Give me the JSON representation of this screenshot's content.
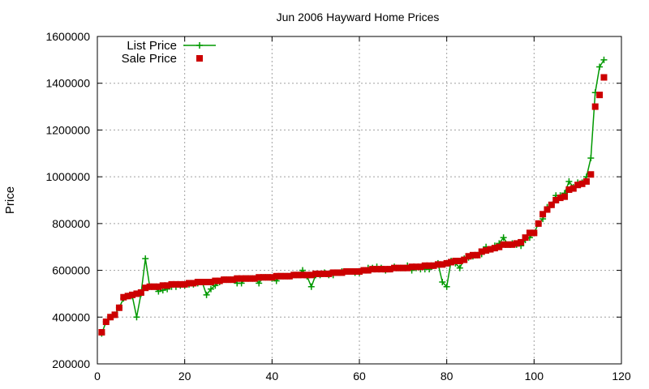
{
  "chart_data": {
    "type": "scatter",
    "title": "Jun 2006 Hayward Home Prices",
    "xlabel": "",
    "ylabel": "Price",
    "xlim": [
      0,
      120
    ],
    "ylim": [
      200000,
      1600000
    ],
    "xticks": [
      0,
      20,
      40,
      60,
      80,
      100,
      120
    ],
    "yticks": [
      200000,
      400000,
      600000,
      800000,
      1000000,
      1200000,
      1400000,
      1600000
    ],
    "grid": true,
    "legend": "top-left",
    "series": [
      {
        "name": "List Price",
        "kind": "line-points",
        "color": "#009900",
        "marker": "plus",
        "x": [
          1,
          2,
          3,
          4,
          5,
          6,
          7,
          8,
          9,
          10,
          11,
          12,
          13,
          14,
          15,
          16,
          17,
          18,
          19,
          20,
          21,
          22,
          23,
          24,
          25,
          26,
          27,
          28,
          29,
          30,
          31,
          32,
          33,
          34,
          35,
          36,
          37,
          38,
          39,
          40,
          41,
          42,
          43,
          44,
          45,
          46,
          47,
          48,
          49,
          50,
          51,
          52,
          53,
          54,
          55,
          56,
          57,
          58,
          59,
          60,
          61,
          62,
          63,
          64,
          65,
          66,
          67,
          68,
          69,
          70,
          71,
          72,
          73,
          74,
          75,
          76,
          77,
          78,
          79,
          80,
          81,
          82,
          83,
          84,
          85,
          86,
          87,
          88,
          89,
          90,
          91,
          92,
          93,
          94,
          95,
          96,
          97,
          98,
          99,
          100,
          101,
          102,
          103,
          104,
          105,
          106,
          107,
          108,
          109,
          110,
          111,
          112,
          113,
          114,
          115,
          116
        ],
        "y": [
          330000,
          380000,
          400000,
          410000,
          440000,
          480000,
          490000,
          490000,
          400000,
          500000,
          650000,
          530000,
          530000,
          510000,
          515000,
          520000,
          530000,
          530000,
          535000,
          535000,
          540000,
          540000,
          545000,
          550000,
          495000,
          520000,
          535000,
          550000,
          560000,
          560000,
          560000,
          545000,
          545000,
          565000,
          565000,
          565000,
          545000,
          570000,
          570000,
          565000,
          555000,
          575000,
          575000,
          575000,
          580000,
          580000,
          600000,
          575000,
          530000,
          580000,
          580000,
          590000,
          580000,
          580000,
          590000,
          595000,
          595000,
          595000,
          590000,
          590000,
          600000,
          610000,
          610000,
          615000,
          610000,
          600000,
          605000,
          615000,
          610000,
          610000,
          620000,
          600000,
          610000,
          605000,
          605000,
          605000,
          620000,
          630000,
          550000,
          530000,
          640000,
          630000,
          610000,
          650000,
          655000,
          660000,
          665000,
          670000,
          700000,
          690000,
          705000,
          715000,
          740000,
          710000,
          715000,
          710000,
          705000,
          730000,
          740000,
          760000,
          800000,
          820000,
          870000,
          880000,
          920000,
          920000,
          930000,
          980000,
          955000,
          975000,
          975000,
          1000000,
          1080000,
          1360000,
          1470000,
          1500000
        ]
      },
      {
        "name": "Sale Price",
        "kind": "points",
        "color": "#cc0000",
        "marker": "square",
        "x": [
          1,
          2,
          3,
          4,
          5,
          6,
          7,
          8,
          9,
          10,
          11,
          12,
          13,
          14,
          15,
          16,
          17,
          18,
          19,
          20,
          21,
          22,
          23,
          24,
          25,
          26,
          27,
          28,
          29,
          30,
          31,
          32,
          33,
          34,
          35,
          36,
          37,
          38,
          39,
          40,
          41,
          42,
          43,
          44,
          45,
          46,
          47,
          48,
          49,
          50,
          51,
          52,
          53,
          54,
          55,
          56,
          57,
          58,
          59,
          60,
          61,
          62,
          63,
          64,
          65,
          66,
          67,
          68,
          69,
          70,
          71,
          72,
          73,
          74,
          75,
          76,
          77,
          78,
          79,
          80,
          81,
          82,
          83,
          84,
          85,
          86,
          87,
          88,
          89,
          90,
          91,
          92,
          93,
          94,
          95,
          96,
          97,
          98,
          99,
          100,
          101,
          102,
          103,
          104,
          105,
          106,
          107,
          108,
          109,
          110,
          111,
          112,
          113,
          114,
          115,
          116
        ],
        "y": [
          335000,
          380000,
          400000,
          410000,
          440000,
          485000,
          490000,
          495000,
          500000,
          505000,
          525000,
          530000,
          530000,
          530000,
          535000,
          535000,
          540000,
          540000,
          540000,
          540000,
          545000,
          545000,
          550000,
          550000,
          550000,
          550000,
          555000,
          555000,
          560000,
          560000,
          560000,
          565000,
          565000,
          565000,
          565000,
          565000,
          570000,
          570000,
          570000,
          570000,
          575000,
          575000,
          575000,
          575000,
          580000,
          580000,
          580000,
          580000,
          580000,
          585000,
          585000,
          585000,
          585000,
          590000,
          590000,
          590000,
          595000,
          595000,
          595000,
          595000,
          600000,
          600000,
          605000,
          605000,
          605000,
          605000,
          605000,
          610000,
          610000,
          610000,
          610000,
          615000,
          615000,
          615000,
          620000,
          620000,
          620000,
          625000,
          625000,
          630000,
          635000,
          640000,
          640000,
          645000,
          660000,
          665000,
          665000,
          680000,
          685000,
          690000,
          695000,
          700000,
          710000,
          710000,
          710000,
          715000,
          720000,
          740000,
          760000,
          760000,
          800000,
          840000,
          860000,
          880000,
          900000,
          910000,
          915000,
          945000,
          950000,
          965000,
          970000,
          980000,
          1010000,
          1300000,
          1350000,
          1425000
        ]
      }
    ]
  }
}
